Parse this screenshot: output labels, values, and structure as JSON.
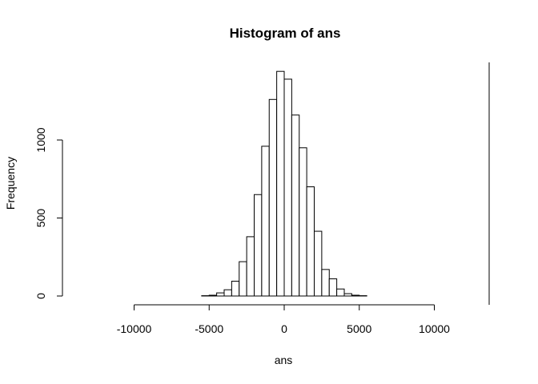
{
  "chart_data": {
    "type": "bar",
    "title": "Histogram of ans",
    "xlabel": "ans",
    "ylabel": "Frequency",
    "xlim": [
      -15000,
      15000
    ],
    "ylim": [
      0,
      1500
    ],
    "x_ticks": [
      -10000,
      -5000,
      0,
      5000,
      10000
    ],
    "x_tick_labels": [
      "-10000",
      "-5000",
      "0",
      "5000",
      "10000"
    ],
    "y_ticks": [
      0,
      500,
      1000
    ],
    "y_tick_labels": [
      "0",
      "500",
      "1000"
    ],
    "bin_edges": [
      -5500,
      -5000,
      -4500,
      -4000,
      -3500,
      -3000,
      -2500,
      -2000,
      -1500,
      -1000,
      -500,
      0,
      500,
      1000,
      1500,
      2000,
      2500,
      3000,
      3500,
      4000,
      4500,
      5000,
      5500
    ],
    "values": [
      2,
      5,
      20,
      40,
      95,
      220,
      380,
      650,
      960,
      1260,
      1440,
      1390,
      1160,
      950,
      700,
      415,
      170,
      110,
      45,
      15,
      5,
      2
    ],
    "grid": false,
    "legend": "none"
  }
}
